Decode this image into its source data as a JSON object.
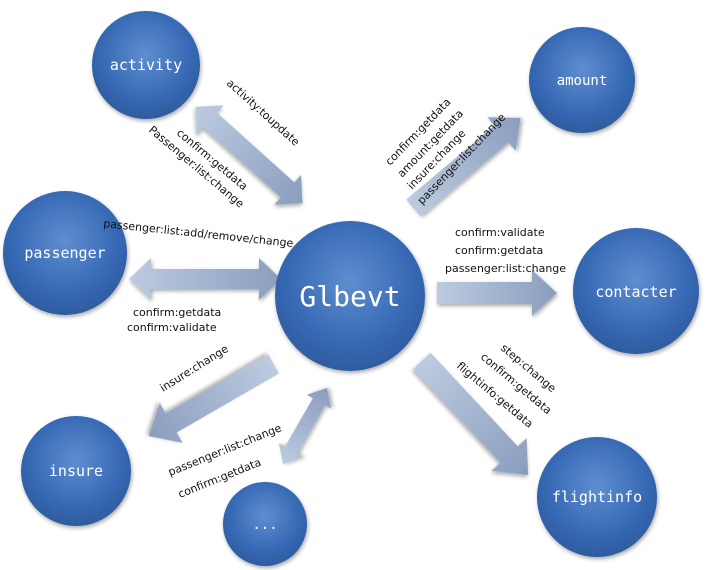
{
  "nodes": {
    "center": "Glbevt",
    "activity": "activity",
    "amount": "amount",
    "passenger": "passenger",
    "contacter": "contacter",
    "insure": "insure",
    "more": "...",
    "flightinfo": "flightinfo"
  },
  "edges": {
    "activity": [
      "activity:toupdate",
      "confirm:getdata",
      "Passenger:list:change"
    ],
    "amount": [
      "confirm:getdata",
      "amount:getdata",
      "insure:change",
      "passenger:list:change"
    ],
    "passenger": [
      "passenger:list:add/remove/change",
      "confirm:getdata",
      "confirm:validate"
    ],
    "contacter": [
      "confirm:validate",
      "confirm:getdata",
      "passenger:list:change"
    ],
    "insure": [
      "insure:change"
    ],
    "more": [
      "passenger:list:change",
      "confirm:getdata"
    ],
    "flightinfo": [
      "step:change",
      "confirm:getdata",
      "flightinfo:getdata"
    ]
  },
  "colors": {
    "node_fill": "#3668B4",
    "node_highlight": "#5F8ED0",
    "arrow_light": "#BCCBE0",
    "arrow_dark": "#8A9DBE",
    "text": "#111111",
    "background": "#ffffff"
  }
}
